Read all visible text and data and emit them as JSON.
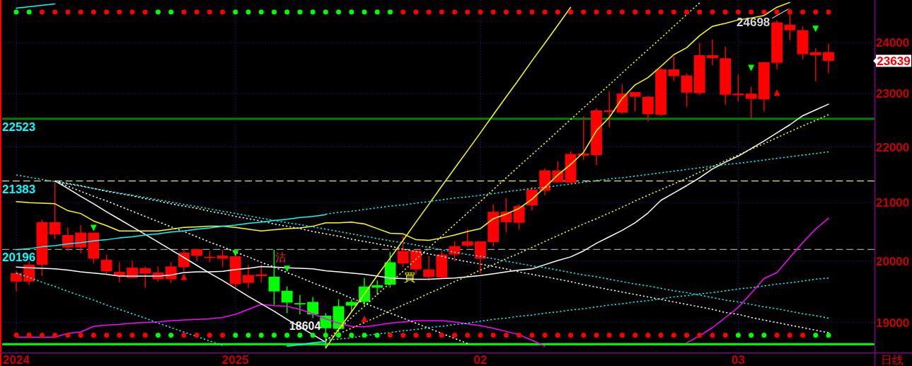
{
  "chart_data": {
    "type": "candlestick",
    "categories": [
      "2024",
      null,
      null,
      null,
      null,
      null,
      null,
      null,
      null,
      null,
      null,
      null,
      null,
      null,
      null,
      null,
      null,
      "2025",
      null,
      null,
      null,
      null,
      null,
      null,
      null,
      null,
      null,
      null,
      null,
      null,
      null,
      null,
      null,
      null,
      null,
      null,
      "02",
      null,
      null,
      null,
      null,
      null,
      null,
      null,
      null,
      null,
      null,
      null,
      null,
      null,
      null,
      null,
      null,
      null,
      null,
      null,
      "03",
      null,
      null,
      null,
      null,
      null,
      null,
      null
    ],
    "ylim": [
      18530,
      24870
    ],
    "yticks": [
      19000,
      20000,
      21000,
      22000,
      23000,
      24000
    ],
    "log": true,
    "grid": true,
    "ohlc": [
      [
        19660,
        19840,
        19500,
        19800
      ],
      [
        19660,
        20000,
        19610,
        19940
      ],
      [
        19940,
        20700,
        19750,
        20660
      ],
      [
        20450,
        21383,
        20370,
        20660
      ],
      [
        20230,
        20570,
        20170,
        20440
      ],
      [
        20230,
        20610,
        20130,
        20480
      ],
      [
        20040,
        20480,
        19960,
        20480
      ],
      [
        19830,
        20110,
        19780,
        20020
      ],
      [
        19760,
        19980,
        19650,
        19820
      ],
      [
        19720,
        20010,
        19720,
        19890
      ],
      [
        19790,
        19910,
        19560,
        19880
      ],
      [
        19700,
        19910,
        19660,
        19810
      ],
      [
        19700,
        19980,
        19640,
        19910
      ],
      [
        19900,
        20200,
        19830,
        20140
      ],
      [
        20090,
        20200,
        20000,
        20200
      ],
      [
        20050,
        20170,
        19980,
        20070
      ],
      [
        20040,
        20190,
        19900,
        20090
      ],
      [
        19620,
        20120,
        19560,
        20080
      ],
      [
        19640,
        19940,
        19560,
        19770
      ],
      [
        19750,
        19940,
        19650,
        19780
      ],
      [
        19740,
        20190,
        19270,
        19500
      ],
      [
        19510,
        19580,
        19150,
        19320
      ],
      [
        19310,
        19440,
        19130,
        19290
      ],
      [
        19330,
        19410,
        19070,
        19130
      ],
      [
        19110,
        19150,
        18604,
        18910
      ],
      [
        19260,
        19370,
        18840,
        18900
      ],
      [
        19330,
        19370,
        19180,
        19270
      ],
      [
        19580,
        19720,
        19260,
        19330
      ],
      [
        19600,
        19680,
        19440,
        19560
      ],
      [
        19980,
        20150,
        19560,
        19610
      ],
      [
        19960,
        20420,
        19900,
        20170
      ],
      [
        19860,
        20180,
        19780,
        20180
      ],
      [
        19740,
        20090,
        19680,
        19860
      ],
      [
        19730,
        20180,
        19710,
        20110
      ],
      [
        20110,
        20330,
        20000,
        20250
      ],
      [
        20260,
        20540,
        20230,
        20330
      ],
      [
        20040,
        20330,
        19790,
        20330
      ],
      [
        20320,
        20970,
        20240,
        20840
      ],
      [
        20660,
        21080,
        20480,
        20840
      ],
      [
        20650,
        20970,
        20530,
        20940
      ],
      [
        20950,
        21280,
        20860,
        21230
      ],
      [
        21210,
        21610,
        21130,
        21570
      ],
      [
        21360,
        21740,
        21350,
        21570
      ],
      [
        21350,
        21920,
        21340,
        21870
      ],
      [
        21840,
        22570,
        21760,
        21880
      ],
      [
        21850,
        22720,
        21670,
        22680
      ],
      [
        22650,
        23040,
        22360,
        22680
      ],
      [
        22640,
        23180,
        22610,
        23000
      ],
      [
        22940,
        23030,
        22660,
        23030
      ],
      [
        22610,
        22960,
        22470,
        22940
      ],
      [
        22600,
        23500,
        22570,
        23470
      ],
      [
        23340,
        23720,
        23240,
        23470
      ],
      [
        23020,
        23390,
        22750,
        23350
      ],
      [
        23010,
        23990,
        22970,
        23750
      ],
      [
        23690,
        24060,
        23550,
        23750
      ],
      [
        22980,
        23920,
        22790,
        23690
      ],
      [
        22970,
        23370,
        22850,
        23000
      ],
      [
        22900,
        23130,
        22540,
        23000
      ],
      [
        22890,
        23620,
        22660,
        23610
      ],
      [
        23600,
        24450,
        23470,
        24410
      ],
      [
        24250,
        24698,
        24050,
        24360
      ],
      [
        23770,
        24330,
        23670,
        24250
      ],
      [
        23750,
        23890,
        23240,
        23810
      ],
      [
        23639,
        23980,
        23400,
        23810
      ]
    ],
    "colors": [
      "#ff0000",
      "#ff0000",
      "#ff0000",
      "#ff0000",
      "#ff0000",
      "#ff0000",
      "#ff0000",
      "#ff0000",
      "#ff0000",
      "#ff0000",
      "#ff0000",
      "#ff0000",
      "#ff0000",
      "#ff0000",
      "#ff0000",
      "#ff0000",
      "#ff0000",
      "#ff0000",
      "#ff0000",
      "#ff0000",
      "#00ff00",
      "#00ff00",
      "#00ff00",
      "#00ff00",
      "#00ff00",
      "#00ff00",
      "#00ff00",
      "#00ff00",
      "#00ff00",
      "#00ff00",
      "#ff0000",
      "#ff0000",
      "#ff0000",
      "#ff0000",
      "#ff0000",
      "#ff0000",
      "#ff0000",
      "#ff0000",
      "#ff0000",
      "#ff0000",
      "#ff0000",
      "#ff0000",
      "#ff0000",
      "#ff0000",
      "#ff0000",
      "#ff0000",
      "#ff0000",
      "#ff0000",
      "#ff0000",
      "#ff0000",
      "#ff0000",
      "#ff0000",
      "#ff0000",
      "#ff0000",
      "#ff0000",
      "#ff0000",
      "#ff0000",
      "#ff0000",
      "#ff0000",
      "#ff0000",
      "#ff0000",
      "#ff0000",
      "#ff0000",
      "#ff0000"
    ],
    "series": [
      {
        "type": "line",
        "color": "#ffff00",
        "values": [
          21020,
          21000,
          20990,
          20980,
          20860,
          20810,
          20680,
          20600,
          20510,
          20510,
          20510,
          20510,
          20540,
          20570,
          20580,
          20590,
          20590,
          20570,
          20540,
          20510,
          20530,
          20550,
          20560,
          20590,
          20650,
          20650,
          20660,
          20630,
          20550,
          20470,
          20460,
          20360,
          20350,
          20390,
          20440,
          20500,
          20550,
          20720,
          20800,
          20900,
          21060,
          21270,
          21490,
          21680,
          21900,
          22300,
          22550,
          22910,
          23170,
          23310,
          23530,
          23760,
          23900,
          24140,
          24330,
          24390,
          24460,
          24500,
          24550,
          24720,
          24820,
          null,
          null,
          null
        ]
      },
      {
        "type": "line",
        "color": "#ffffff",
        "values": [
          19900,
          19890,
          19880,
          19870,
          19850,
          19820,
          19800,
          19780,
          19750,
          19750,
          19750,
          19750,
          19770,
          19810,
          19820,
          19820,
          19830,
          19860,
          19880,
          19910,
          19900,
          19890,
          19880,
          19870,
          19840,
          19820,
          19800,
          19780,
          19750,
          19720,
          19710,
          19700,
          19700,
          19710,
          19720,
          19740,
          19760,
          19790,
          19820,
          19850,
          19870,
          19940,
          20010,
          20070,
          20170,
          20300,
          20410,
          20520,
          20650,
          20820,
          21040,
          21170,
          21300,
          21440,
          21600,
          21720,
          21830,
          21970,
          22110,
          22260,
          22410,
          22580,
          22690,
          22800
        ]
      },
      {
        "type": "line",
        "color": "#ff00ff",
        "values": [
          18770,
          18770,
          18770,
          18770,
          18830,
          18850,
          18940,
          18960,
          18970,
          18990,
          19000,
          19010,
          19030,
          19040,
          19050,
          19060,
          19080,
          19130,
          19210,
          19290,
          19270,
          19260,
          19210,
          19140,
          19060,
          18990,
          18940,
          18930,
          18960,
          18990,
          19010,
          19030,
          19030,
          19030,
          19010,
          18980,
          18950,
          18910,
          18860,
          18810,
          18720,
          18630,
          null,
          null,
          null,
          null,
          null,
          null,
          null,
          null,
          null,
          null,
          18680,
          18790,
          18920,
          19080,
          19240,
          19470,
          19710,
          19810,
          20060,
          20310,
          20540,
          20730
        ]
      },
      {
        "type": "line",
        "color": "#ffff00",
        "values": [
          null,
          null,
          null,
          null,
          null,
          null,
          null,
          null,
          null,
          null,
          null,
          null,
          null,
          null,
          null,
          null,
          null,
          null,
          null,
          null,
          null,
          null,
          null,
          null,
          18600,
          18890,
          19170,
          19460,
          19760,
          20050,
          20350,
          20660,
          20970,
          21290,
          21610,
          21930,
          22260,
          22600,
          22940,
          23280,
          23640,
          23990,
          24350,
          24720,
          null,
          null,
          null,
          null,
          null,
          null,
          null,
          null,
          null,
          null,
          null,
          null,
          null,
          null,
          null,
          null,
          null,
          null,
          null,
          null
        ]
      },
      {
        "type": "line",
        "color": "#ffff00",
        "line_style": "dotted",
        "values": [
          null,
          null,
          null,
          null,
          null,
          null,
          null,
          null,
          null,
          null,
          null,
          null,
          null,
          null,
          null,
          null,
          null,
          null,
          null,
          null,
          null,
          null,
          null,
          null,
          18710,
          18890,
          19080,
          19260,
          19450,
          19640,
          19830,
          20030,
          20220,
          20420,
          20620,
          20820,
          21020,
          21230,
          21440,
          21650,
          21860,
          22070,
          22290,
          22510,
          22730,
          22950,
          23170,
          23400,
          23630,
          23860,
          24090,
          24330,
          24570,
          24810,
          null,
          null,
          null,
          null,
          null,
          null,
          null,
          null,
          null,
          null
        ]
      },
      {
        "type": "line",
        "color": "#ffff00",
        "line_style": "dotted",
        "values": [
          null,
          null,
          null,
          null,
          null,
          null,
          null,
          null,
          null,
          null,
          null,
          null,
          null,
          null,
          null,
          null,
          null,
          null,
          null,
          null,
          null,
          null,
          null,
          null,
          18730,
          18820,
          18910,
          19000,
          19090,
          19190,
          19280,
          19370,
          19470,
          19560,
          19660,
          19750,
          19850,
          19940,
          20040,
          20130,
          20230,
          20330,
          20430,
          20530,
          20630,
          20720,
          20820,
          20920,
          21030,
          21130,
          21230,
          21330,
          21430,
          21540,
          21640,
          21750,
          21850,
          21960,
          22060,
          22170,
          22280,
          22390,
          22490,
          22600
        ]
      },
      {
        "type": "line",
        "color": "#ffffff",
        "values": [
          null,
          null,
          null,
          21383,
          21250,
          21110,
          20980,
          20840,
          20710,
          20580,
          20450,
          20320,
          20190,
          20060,
          19930,
          19800,
          19680,
          19550,
          19420,
          19300,
          19180,
          19050,
          18930,
          18810,
          18690,
          null,
          null,
          null,
          null,
          null,
          null,
          null,
          null,
          null,
          null,
          null,
          null,
          null,
          null,
          null,
          null,
          null,
          null,
          null,
          null,
          null,
          null,
          null,
          null,
          null,
          null,
          null,
          null,
          null,
          null,
          null,
          null,
          null,
          null,
          null,
          null,
          null,
          null,
          null
        ]
      },
      {
        "type": "line",
        "color": "#ffffff",
        "line_style": "dotted",
        "values": [
          null,
          null,
          null,
          21383,
          21290,
          21200,
          21110,
          21030,
          20940,
          20850,
          20760,
          20670,
          20580,
          20500,
          20410,
          20320,
          20240,
          20150,
          20070,
          19980,
          19900,
          19810,
          19730,
          19640,
          19560,
          19480,
          19390,
          19310,
          19230,
          19150,
          19070,
          18990,
          18910,
          18830,
          18750,
          18670,
          null,
          null,
          null,
          null,
          null,
          null,
          null,
          null,
          null,
          null,
          null,
          null,
          null,
          null,
          null,
          null,
          null,
          null,
          null,
          null,
          null,
          null,
          null,
          null,
          null,
          null,
          null,
          null
        ]
      },
      {
        "type": "line",
        "color": "#ffffff",
        "line_style": "dotted",
        "values": [
          null,
          null,
          null,
          21383,
          21340,
          21300,
          21250,
          21200,
          21160,
          21120,
          21070,
          21030,
          20980,
          20940,
          20900,
          20850,
          20810,
          20760,
          20720,
          20680,
          20630,
          20590,
          20550,
          20500,
          20460,
          20420,
          20370,
          20330,
          20290,
          20250,
          20200,
          20160,
          20120,
          20080,
          20030,
          19990,
          19950,
          19910,
          19870,
          19820,
          19780,
          19740,
          19700,
          19660,
          19610,
          19570,
          19530,
          19490,
          19450,
          19410,
          19370,
          19330,
          19290,
          19250,
          19210,
          19160,
          19130,
          19080,
          19040,
          19000,
          18960,
          18920,
          18880,
          18840
        ]
      },
      {
        "type": "line",
        "color": "#00ffff",
        "line_style": "dotted",
        "values": [
          21490,
          21450,
          21410,
          21370,
          21330,
          21290,
          21250,
          21210,
          21170,
          21130,
          21090,
          21050,
          21010,
          20970,
          20930,
          20890,
          20850,
          20810,
          20770,
          20730,
          20690,
          20650,
          20620,
          20580,
          20540,
          20500,
          20460,
          20420,
          20380,
          20340,
          20310,
          20270,
          20230,
          20190,
          20150,
          20110,
          20080,
          20040,
          20000,
          19960,
          19920,
          19890,
          19850,
          19810,
          19770,
          19740,
          19700,
          19660,
          19620,
          19590,
          19550,
          19510,
          19480,
          19440,
          19400,
          19360,
          19330,
          19290,
          19250,
          19220,
          19180,
          19140,
          19110,
          19070
        ]
      },
      {
        "type": "line",
        "color": "#00ffff",
        "line_style": "dotted",
        "values": [
          19800,
          19730,
          19650,
          19580,
          19500,
          19430,
          19360,
          19280,
          19210,
          19140,
          19070,
          18990,
          18920,
          18850,
          18780,
          18710,
          18640,
          null,
          null,
          null,
          null,
          null,
          null,
          null,
          null,
          null,
          null,
          null,
          null,
          null,
          null,
          null,
          null,
          null,
          null,
          null,
          null,
          null,
          null,
          null,
          null,
          null,
          null,
          null,
          null,
          null,
          null,
          null,
          null,
          null,
          null,
          null,
          null,
          null,
          null,
          null,
          null,
          null,
          null,
          null,
          null,
          null,
          null,
          null
        ]
      },
      {
        "type": "line",
        "color": "#00ffff",
        "line_style": "dotted",
        "values": [
          null,
          null,
          null,
          null,
          null,
          null,
          null,
          null,
          null,
          null,
          null,
          null,
          null,
          null,
          null,
          null,
          null,
          null,
          null,
          null,
          null,
          null,
          null,
          null,
          18720,
          18740,
          18760,
          18790,
          18820,
          18840,
          18870,
          18890,
          18920,
          18940,
          18970,
          18990,
          19020,
          19050,
          19070,
          19100,
          19120,
          19150,
          19170,
          19200,
          19220,
          19250,
          19280,
          19300,
          19330,
          19350,
          19380,
          19410,
          19430,
          19460,
          19480,
          19510,
          19540,
          19560,
          19590,
          19620,
          19640,
          19670,
          19700,
          19720
        ]
      },
      {
        "type": "line",
        "color": "#00ffff",
        "line_style": "dotted",
        "values": [
          null,
          null,
          null,
          null,
          null,
          null,
          null,
          null,
          null,
          null,
          null,
          null,
          null,
          null,
          null,
          null,
          null,
          null,
          null,
          null,
          null,
          null,
          null,
          null,
          20800,
          20830,
          20850,
          20880,
          20910,
          20940,
          20960,
          20990,
          21020,
          21050,
          21080,
          21100,
          21130,
          21160,
          21190,
          21220,
          21250,
          21270,
          21300,
          21330,
          21360,
          21390,
          21420,
          21440,
          21470,
          21500,
          21530,
          21560,
          21590,
          21620,
          21650,
          21680,
          21700,
          21730,
          21760,
          21790,
          21820,
          21850,
          21880,
          21910
        ]
      },
      {
        "type": "line",
        "color": "#00ffff",
        "values": [
          20190,
          20210,
          20240,
          20260,
          20290,
          20310,
          20340,
          20360,
          20390,
          20410,
          20440,
          20460,
          20490,
          20510,
          20540,
          20560,
          20590,
          20610,
          20640,
          20660,
          20690,
          20710,
          20740,
          20760,
          20790,
          null,
          null,
          null,
          null,
          null,
          null,
          null,
          null,
          null,
          null,
          null,
          null,
          null,
          null,
          null,
          null,
          null,
          null,
          null,
          null,
          null,
          null,
          null,
          null,
          null,
          null,
          null,
          null,
          null,
          null,
          null,
          null,
          null,
          null,
          null,
          null,
          null,
          null,
          null
        ]
      },
      {
        "type": "line",
        "color": "#00ffff",
        "values": [
          null,
          null,
          null,
          null,
          null,
          null,
          null,
          null,
          null,
          null,
          null,
          null,
          null,
          null,
          null,
          null,
          null,
          null,
          null,
          null,
          null,
          18630,
          18650,
          18680,
          18700,
          null,
          null,
          null,
          null,
          null,
          null,
          null,
          null,
          null,
          null,
          null,
          null,
          null,
          null,
          null,
          null,
          null,
          null,
          null,
          null,
          null,
          null,
          null,
          null,
          null,
          null,
          null,
          null,
          null,
          null,
          null,
          null,
          null,
          null,
          null,
          null,
          null,
          null,
          null
        ]
      },
      {
        "type": "line",
        "color": "#00ffff",
        "values": [
          24700,
          24730,
          24760,
          24790,
          null,
          null,
          null,
          null,
          null,
          null,
          null,
          null,
          null,
          null,
          null,
          null,
          null,
          null,
          null,
          null,
          null,
          null,
          null,
          null,
          null,
          null,
          null,
          null,
          null,
          null,
          null,
          null,
          null,
          null,
          null,
          null,
          null,
          null,
          null,
          null,
          null,
          null,
          null,
          null,
          null,
          null,
          null,
          null,
          null,
          null,
          null,
          null,
          null,
          null,
          null,
          null,
          null,
          null,
          null,
          null,
          null,
          null,
          null,
          null
        ]
      },
      {
        "type": "scatter",
        "marker": "circle",
        "colors": [
          "#00ff00",
          "#00ff00",
          "#ff0000",
          "#ff0000",
          "#ff0000",
          "#ff0000",
          "#ff0000",
          "#ff0000",
          "#ff0000",
          "#ff0000",
          "#ff0000",
          "#00ff00",
          "#00ff00",
          "#ff0000",
          "#ff0000",
          "#ff0000",
          "#ff0000",
          "#00ff00",
          "#00ff00",
          "#00ff00",
          "#00ff00",
          "#00ff00",
          "#00ff00",
          "#00ff00",
          "#00ff00",
          "#00ff00",
          "#00ff00",
          "#00ff00",
          "#00ff00",
          "#00ff00",
          "#ff0000",
          "#ff0000",
          "#ff0000",
          "#ff0000",
          "#ff0000",
          "#ff0000",
          "#ff0000",
          "#ff0000",
          "#ff0000",
          "#ff0000",
          "#ff0000",
          "#ff0000",
          "#ff0000",
          "#ff0000",
          "#ff0000",
          "#ff0000",
          "#ff0000",
          "#ff0000",
          "#ff0000",
          "#ff0000",
          "#ff0000",
          "#ff0000",
          "#ff0000",
          "#ff0000",
          "#ff0000",
          "#ff0000",
          "#ff0000",
          "#ff0000",
          "#ff0000",
          "#ff0000",
          "#ff0000",
          "#ff0000",
          "#ff0000",
          "#ff0000"
        ],
        "values": [
          24620,
          24620,
          24620,
          24620,
          24620,
          24620,
          24620,
          24620,
          24620,
          24620,
          24620,
          24620,
          24620,
          24620,
          24620,
          24620,
          24620,
          24620,
          24620,
          24620,
          24620,
          24620,
          24620,
          24620,
          24620,
          24620,
          24620,
          24620,
          24620,
          24620,
          24620,
          24620,
          24620,
          24620,
          24620,
          24620,
          24620,
          24620,
          24620,
          24620,
          24620,
          24620,
          24620,
          24620,
          24620,
          24620,
          24620,
          24620,
          24620,
          24620,
          24620,
          24620,
          24620,
          24620,
          24620,
          24620,
          24620,
          24620,
          24620,
          24620,
          24620,
          24620,
          24620,
          24620
        ]
      },
      {
        "type": "scatter",
        "marker": "circle",
        "colors": [
          "#ff0000",
          "#ff0000",
          "#ff0000",
          "#ff0000",
          "#ff0000",
          "#ff0000",
          "#ff0000",
          "#ff0000",
          "#ff0000",
          "#ff0000",
          "#ff0000",
          "#00ff00",
          "#00ff00",
          "#ff0000",
          "#ff0000",
          "#ff0000",
          "#ff0000",
          "#00ff00",
          "#00ff00",
          "#00ff00",
          "#00ff00",
          "#00ff00",
          "#00ff00",
          "#00ff00",
          "#00ff00",
          "#00ff00",
          "#00ff00",
          "#00ff00",
          "#00ff00",
          "#ff0000",
          "#ff0000",
          "#ff0000",
          "#ff0000",
          "#ff0000",
          "#ff0000",
          "#ff0000",
          "#ff0000",
          "#ff0000",
          "#ff0000",
          "#ff0000",
          "#ff0000",
          "#ff0000",
          "#ff0000",
          "#ff0000",
          "#ff0000",
          "#ff0000",
          "#ff0000",
          "#ff0000",
          "#ff0000",
          "#ff0000",
          "#ff0000",
          "#ff0000",
          "#ff0000",
          "#ff0000",
          "#ff0000",
          "#ff0000",
          "#00ff00",
          "#00ff00",
          "#00ff00",
          "#ff0000",
          "#ff0000",
          "#ff0000",
          "#00ff00",
          "#00ff00"
        ],
        "values": [
          18800,
          18800,
          18800,
          18800,
          18800,
          18800,
          18800,
          18800,
          18800,
          18800,
          18800,
          18800,
          18800,
          18800,
          18800,
          18800,
          18800,
          18800,
          18800,
          18800,
          18800,
          18800,
          18800,
          18800,
          18800,
          18800,
          18800,
          18800,
          18800,
          18800,
          18800,
          18800,
          18800,
          18800,
          18800,
          18800,
          18800,
          18800,
          18800,
          18800,
          18800,
          18800,
          18800,
          18800,
          18800,
          18800,
          18800,
          18800,
          18800,
          18800,
          18800,
          18800,
          18800,
          18800,
          18800,
          18800,
          18800,
          18800,
          18800,
          18800,
          18800,
          18800,
          18800,
          18800
        ]
      },
      {
        "type": "scatter",
        "marker": "triangle",
        "color": "#00ff00",
        "values": [
          null,
          null,
          null,
          null,
          null,
          null,
          20560,
          null,
          null,
          null,
          null,
          null,
          null,
          null,
          null,
          null,
          null,
          20130,
          null,
          null,
          null,
          19870,
          null,
          null,
          null,
          null,
          null,
          null,
          null,
          null,
          null,
          null,
          null,
          null,
          null,
          null,
          null,
          null,
          null,
          null,
          null,
          null,
          null,
          null,
          null,
          null,
          null,
          null,
          null,
          null,
          null,
          null,
          null,
          null,
          null,
          null,
          null,
          23500,
          null,
          null,
          null,
          null,
          24280,
          null
        ]
      },
      {
        "type": "scatter",
        "marker": "triangle",
        "color": "#ff0000",
        "values": [
          null,
          null,
          null,
          null,
          null,
          null,
          null,
          null,
          null,
          null,
          null,
          null,
          null,
          19740,
          null,
          null,
          null,
          null,
          null,
          null,
          null,
          null,
          null,
          null,
          null,
          null,
          null,
          19060,
          null,
          null,
          null,
          null,
          null,
          null,
          null,
          null,
          null,
          null,
          null,
          null,
          null,
          null,
          null,
          null,
          null,
          null,
          null,
          null,
          null,
          null,
          null,
          null,
          null,
          null,
          null,
          null,
          null,
          null,
          null,
          23020,
          null,
          null,
          null,
          null
        ]
      }
    ],
    "ref_lines": [
      {
        "axis": "y",
        "value": 22523,
        "label": "22523",
        "color": "#008000"
      },
      {
        "axis": "y",
        "value": 21383,
        "label": "21383",
        "color": "#e8e860",
        "line_style": "dashed"
      },
      {
        "axis": "y",
        "value": 20196,
        "label": "20196",
        "color": "#a0a0a0",
        "line_style": "dashed"
      },
      {
        "axis": "y",
        "value": 18660,
        "color": "#00ff00"
      }
    ],
    "annotations": [
      {
        "text": "24698",
        "y": 24698
      },
      {
        "text": "18604",
        "y": 18604
      },
      "23639",
      "沽",
      "買",
      "日线"
    ]
  }
}
